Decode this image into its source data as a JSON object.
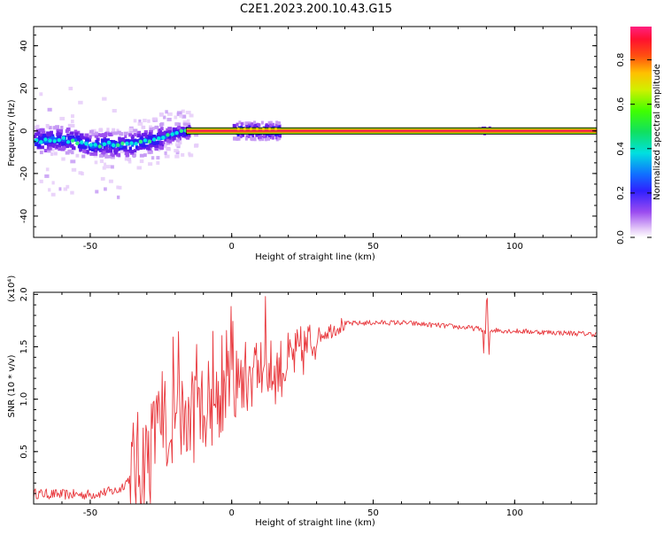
{
  "title": "C2E1.2023.200.10.43.G15",
  "chart_data": [
    {
      "type": "heatmap",
      "xlabel": "Height of straight line (km)",
      "ylabel": "Frequency (Hz)",
      "xlim": [
        -70,
        129
      ],
      "ylim": [
        -50,
        49
      ],
      "xticks": [
        -50,
        0,
        50,
        100
      ],
      "yticks": [
        -40,
        -20,
        0,
        20,
        40
      ],
      "colorbar": {
        "label": "Normalized spectral amplitude",
        "ticks": [
          "0.0",
          "0.2",
          "0.4",
          "0.6",
          "0.8"
        ],
        "range": [
          0,
          0.95
        ]
      },
      "ridge": {
        "x": [
          -70,
          -65,
          -60,
          -55,
          -50,
          -45,
          -40,
          -35,
          -30,
          -25,
          -20,
          -15,
          0,
          10,
          15,
          20,
          129
        ],
        "y": [
          -5,
          -4,
          -4,
          -5,
          -7,
          -6,
          -7,
          -6,
          -5,
          -3,
          -1,
          0,
          0,
          0,
          0,
          0,
          0
        ]
      },
      "line_band_hz": [
        -1.5,
        1.5
      ]
    },
    {
      "type": "line",
      "xlabel": "Height of straight line (km)",
      "ylabel": "SNR (10 * v/v)",
      "yscale_label": "(x10⁴)",
      "xlim": [
        -70,
        129
      ],
      "ylim": [
        0,
        2.02
      ],
      "xticks": [
        -50,
        0,
        50,
        100
      ],
      "yticks": [
        "0.5",
        "1.0",
        "1.5",
        "2.0"
      ],
      "series": [
        {
          "color": "#e8383d",
          "x": [
            -70,
            -60,
            -50,
            -40,
            -36,
            -30,
            -25,
            -20,
            -15,
            -10,
            -5,
            0,
            5,
            10,
            15,
            20,
            25,
            30,
            40,
            50,
            60,
            70,
            80,
            88,
            90,
            92,
            100,
            110,
            120,
            129
          ],
          "y": [
            0.1,
            0.09,
            0.09,
            0.13,
            0.25,
            0.45,
            0.7,
            0.8,
            0.8,
            0.95,
            1.0,
            1.1,
            1.2,
            1.3,
            1.25,
            1.35,
            1.45,
            1.6,
            1.72,
            1.73,
            1.73,
            1.71,
            1.69,
            1.67,
            1.65,
            1.66,
            1.65,
            1.64,
            1.63,
            1.62
          ]
        }
      ]
    }
  ]
}
